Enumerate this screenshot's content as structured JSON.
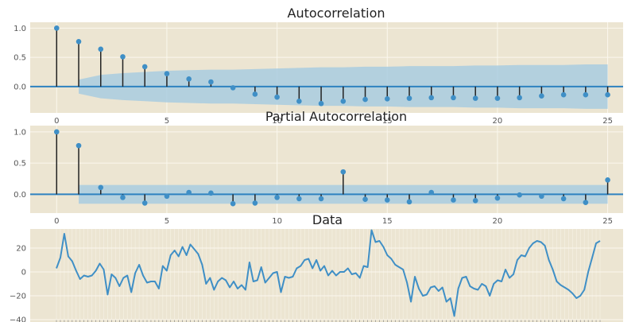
{
  "chart_data": [
    {
      "type": "stem",
      "title": "Autocorrelation",
      "xlim": [
        -1.2,
        25.7
      ],
      "ylim": [
        -0.45,
        1.1
      ],
      "xticks": [
        0,
        5,
        10,
        15,
        20,
        25
      ],
      "yticks": [
        1.0,
        0.5,
        0.0
      ],
      "ytick_labels": [
        "1.0",
        "0.5",
        "0.0"
      ],
      "lags": [
        0,
        1,
        2,
        3,
        4,
        5,
        6,
        7,
        8,
        9,
        10,
        11,
        12,
        13,
        14,
        15,
        16,
        17,
        18,
        19,
        20,
        21,
        22,
        23,
        24,
        25
      ],
      "values": [
        1.0,
        0.77,
        0.64,
        0.51,
        0.34,
        0.22,
        0.13,
        0.08,
        -0.02,
        -0.13,
        -0.18,
        -0.25,
        -0.29,
        -0.25,
        -0.22,
        -0.21,
        -0.2,
        -0.19,
        -0.19,
        -0.2,
        -0.2,
        -0.19,
        -0.16,
        -0.14,
        -0.14,
        -0.14
      ],
      "confidence_band": {
        "lags": [
          1,
          2,
          3,
          4,
          5,
          6,
          7,
          8,
          9,
          10,
          11,
          12,
          13,
          14,
          15,
          16,
          17,
          18,
          19,
          20,
          21,
          22,
          23,
          24,
          25
        ],
        "upper": [
          0.12,
          0.2,
          0.23,
          0.25,
          0.27,
          0.28,
          0.29,
          0.29,
          0.3,
          0.31,
          0.32,
          0.33,
          0.33,
          0.34,
          0.34,
          0.35,
          0.35,
          0.35,
          0.36,
          0.36,
          0.37,
          0.37,
          0.37,
          0.38,
          0.38
        ]
      },
      "grid": true
    },
    {
      "type": "stem",
      "title": "Partial Autocorrelation",
      "xlim": [
        -1.2,
        25.7
      ],
      "ylim": [
        -0.3,
        1.1
      ],
      "xticks": [
        0,
        5,
        10,
        15,
        20,
        25
      ],
      "yticks": [
        1.0,
        0.5,
        0.0
      ],
      "ytick_labels": [
        "1.0",
        "0.5",
        "0.0"
      ],
      "lags": [
        0,
        1,
        2,
        3,
        4,
        5,
        6,
        7,
        8,
        9,
        10,
        11,
        12,
        13,
        14,
        15,
        16,
        17,
        18,
        19,
        20,
        21,
        22,
        23,
        24,
        25
      ],
      "values": [
        1.0,
        0.78,
        0.11,
        -0.05,
        -0.14,
        -0.03,
        0.03,
        0.02,
        -0.15,
        -0.14,
        -0.05,
        -0.07,
        -0.07,
        0.36,
        -0.08,
        -0.09,
        -0.12,
        0.03,
        -0.09,
        -0.1,
        -0.06,
        -0.01,
        -0.03,
        -0.07,
        -0.13,
        0.23
      ],
      "confidence_band": {
        "lags": [
          1,
          25
        ],
        "upper": [
          0.15,
          0.15
        ]
      },
      "grid": true
    },
    {
      "type": "line",
      "title": "Data",
      "ylim": [
        -42,
        36
      ],
      "yticks": [
        20,
        0,
        -20,
        -40
      ],
      "ytick_labels": [
        "20",
        "0",
        "−20",
        "−40"
      ],
      "values": [
        3,
        12,
        32,
        13,
        9,
        1,
        -6,
        -3,
        -4,
        -3,
        1,
        7,
        2,
        -19,
        -2,
        -5,
        -12,
        -5,
        -3,
        -17,
        -1,
        6,
        -3,
        -9,
        -8,
        -8,
        -14,
        5,
        1,
        14,
        18,
        13,
        21,
        14,
        23,
        19,
        15,
        6,
        -10,
        -5,
        -15,
        -8,
        -5,
        -7,
        -13,
        -8,
        -14,
        -11,
        -15,
        8,
        -8,
        -7,
        4,
        -9,
        -5,
        -1,
        0,
        -17,
        -4,
        -5,
        -4,
        3,
        5,
        10,
        11,
        3,
        10,
        1,
        5,
        -3,
        1,
        -3,
        0,
        0,
        3,
        -2,
        -1,
        -5,
        5,
        4,
        35,
        25,
        26,
        21,
        14,
        11,
        6,
        4,
        2,
        -9,
        -25,
        -4,
        -14,
        -20,
        -19,
        -13,
        -12,
        -16,
        -13,
        -25,
        -22,
        -37,
        -14,
        -5,
        -4,
        -12,
        -14,
        -15,
        -10,
        -12,
        -20,
        -10,
        -7,
        -8,
        2,
        -5,
        -2,
        10,
        14,
        13,
        20,
        24,
        26,
        25,
        22,
        10,
        2,
        -8,
        -11,
        -13,
        -15,
        -18,
        -22,
        -20,
        -15,
        0,
        12,
        24,
        26
      ],
      "grid": true
    }
  ]
}
